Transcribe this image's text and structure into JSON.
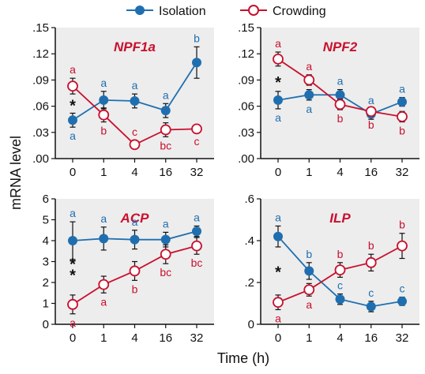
{
  "legend": {
    "isolation_label": "Isolation",
    "crowding_label": "Crowding"
  },
  "colors": {
    "isolation": "#1f6fb0",
    "crowding": "#c8102e",
    "panel_background": "#ededed"
  },
  "ylabel": "mRNA level",
  "xlabel": "Time (h)",
  "chart_data": [
    {
      "type": "line",
      "title": "NPF1a",
      "x": [
        "0",
        "1",
        "4",
        "16",
        "32"
      ],
      "yticks": [
        ".00",
        ".03",
        ".06",
        ".09",
        ".12",
        ".15"
      ],
      "ylim": [
        0,
        0.15
      ],
      "series": [
        {
          "name": "Isolation",
          "values": [
            0.044,
            0.067,
            0.066,
            0.055,
            0.11
          ],
          "errors": [
            0.008,
            0.01,
            0.008,
            0.008,
            0.018
          ],
          "letters": [
            "a",
            "a",
            "a",
            "a",
            "b"
          ],
          "letter_positions": [
            "below",
            "above",
            "above",
            "above",
            "above"
          ]
        },
        {
          "name": "Crowding",
          "values": [
            0.083,
            0.05,
            0.016,
            0.033,
            0.034
          ],
          "errors": [
            0.009,
            0.008,
            0.005,
            0.008,
            0.004
          ],
          "letters": [
            "a",
            "b",
            "c",
            "bc",
            "c"
          ],
          "letter_positions": [
            "above",
            "below",
            "above",
            "below",
            "below"
          ]
        }
      ],
      "significance": [
        "*",
        "",
        "",
        "",
        ""
      ]
    },
    {
      "type": "line",
      "title": "NPF2",
      "x": [
        "0",
        "1",
        "4",
        "16",
        "32"
      ],
      "yticks": [
        ".00",
        ".03",
        ".06",
        ".09",
        ".12",
        ".15"
      ],
      "ylim": [
        0,
        0.15
      ],
      "series": [
        {
          "name": "Isolation",
          "values": [
            0.067,
            0.073,
            0.073,
            0.051,
            0.065
          ],
          "errors": [
            0.01,
            0.006,
            0.006,
            0.006,
            0.005
          ],
          "letters": [
            "a",
            "a",
            "a",
            "a",
            "a"
          ],
          "letter_positions": [
            "below",
            "below",
            "above",
            "above",
            "above"
          ]
        },
        {
          "name": "Crowding",
          "values": [
            0.114,
            0.09,
            0.062,
            0.054,
            0.048
          ],
          "errors": [
            0.008,
            0.006,
            0.006,
            0.005,
            0.006
          ],
          "letters": [
            "a",
            "a",
            "b",
            "b",
            "b"
          ],
          "letter_positions": [
            "above",
            "above",
            "below",
            "below",
            "below"
          ]
        }
      ],
      "significance": [
        "*",
        "",
        "",
        "",
        ""
      ]
    },
    {
      "type": "line",
      "title": "ACP",
      "x": [
        "0",
        "1",
        "4",
        "16",
        "32"
      ],
      "yticks": [
        "0",
        "1",
        "2",
        "3",
        "4",
        "5",
        "6"
      ],
      "ylim": [
        0,
        6
      ],
      "series": [
        {
          "name": "Isolation",
          "values": [
            4.0,
            4.1,
            4.05,
            4.05,
            4.45
          ],
          "errors": [
            0.9,
            0.55,
            0.45,
            0.35,
            0.25
          ],
          "letters": [
            "a",
            "a",
            "a",
            "a",
            "a"
          ],
          "letter_positions": [
            "above",
            "above",
            "above",
            "above",
            "above"
          ]
        },
        {
          "name": "Crowding",
          "values": [
            0.95,
            1.9,
            2.55,
            3.35,
            3.75
          ],
          "errors": [
            0.45,
            0.4,
            0.45,
            0.45,
            0.4
          ],
          "letters": [
            "a",
            "a",
            "b",
            "bc",
            "bc"
          ],
          "letter_positions": [
            "below",
            "below",
            "below",
            "below",
            "below"
          ]
        }
      ],
      "significance": [
        "**",
        "",
        "",
        "",
        ""
      ]
    },
    {
      "type": "line",
      "title": "ILP",
      "x": [
        "0",
        "1",
        "4",
        "16",
        "32"
      ],
      "yticks": [
        "0",
        ".2",
        ".4",
        ".6"
      ],
      "ylim": [
        0,
        0.6
      ],
      "series": [
        {
          "name": "Isolation",
          "values": [
            0.42,
            0.255,
            0.12,
            0.085,
            0.11
          ],
          "errors": [
            0.05,
            0.04,
            0.025,
            0.025,
            0.02
          ],
          "letters": [
            "a",
            "b",
            "c",
            "c",
            "c"
          ],
          "letter_positions": [
            "above",
            "above",
            "above",
            "above",
            "above"
          ]
        },
        {
          "name": "Crowding",
          "values": [
            0.105,
            0.165,
            0.26,
            0.295,
            0.375
          ],
          "errors": [
            0.035,
            0.03,
            0.035,
            0.04,
            0.06
          ],
          "letters": [
            "a",
            "a",
            "b",
            "b",
            "b"
          ],
          "letter_positions": [
            "below",
            "below",
            "above",
            "above",
            "above"
          ]
        }
      ],
      "significance": [
        "*",
        "",
        "",
        "",
        ""
      ]
    }
  ]
}
